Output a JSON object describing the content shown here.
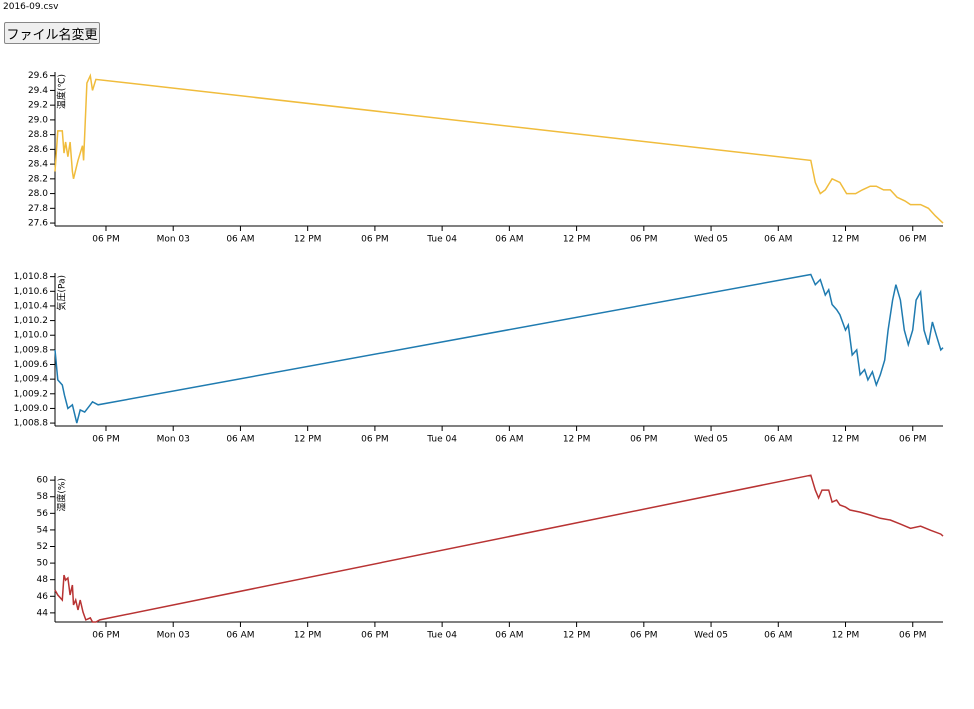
{
  "header": {
    "filename": "2016-09.csv",
    "button": "ファイル名変更"
  },
  "chart_data": [
    {
      "type": "line",
      "ylabel": "温度(℃)",
      "color": "#f0bc3c",
      "x": [
        13.45,
        13.7,
        14.1,
        14.25,
        14.4,
        14.6,
        14.8,
        15.0,
        15.1,
        15.5,
        15.9,
        16.0,
        16.3,
        16.6,
        16.8,
        17.1,
        80.9,
        81.3,
        81.75,
        82.2,
        82.8,
        83.5,
        84.1,
        84.9,
        85.5,
        86.2,
        86.75,
        87.4,
        88.0,
        88.6,
        89.3,
        89.8,
        90.7,
        91.4,
        92.0,
        92.7
      ],
      "values": [
        28.3,
        28.85,
        28.85,
        28.55,
        28.7,
        28.5,
        28.7,
        28.3,
        28.2,
        28.45,
        28.65,
        28.45,
        29.5,
        29.6,
        29.4,
        29.55,
        28.45,
        28.15,
        28.0,
        28.05,
        28.2,
        28.15,
        28.0,
        28.0,
        28.05,
        28.1,
        28.1,
        28.05,
        28.05,
        27.95,
        27.9,
        27.85,
        27.85,
        27.8,
        27.7,
        27.6
      ],
      "xlim": [
        13.45,
        92.7
      ],
      "xticks": [
        {
          "value": 18,
          "label": "06 PM"
        },
        {
          "value": 24,
          "label": "Mon 03"
        },
        {
          "value": 30,
          "label": "06 AM"
        },
        {
          "value": 36,
          "label": "12 PM"
        },
        {
          "value": 42,
          "label": "06 PM"
        },
        {
          "value": 48,
          "label": "Tue 04"
        },
        {
          "value": 54,
          "label": "06 AM"
        },
        {
          "value": 60,
          "label": "12 PM"
        },
        {
          "value": 66,
          "label": "06 PM"
        },
        {
          "value": 72,
          "label": "Wed 05"
        },
        {
          "value": 78,
          "label": "06 AM"
        },
        {
          "value": 84,
          "label": "12 PM"
        },
        {
          "value": 90,
          "label": "06 PM"
        }
      ],
      "ylim": [
        27.56,
        29.65
      ],
      "yticks": [
        27.6,
        27.8,
        {
          "value": 28,
          "label": "28.0"
        },
        28.2,
        28.4,
        28.6,
        28.8,
        {
          "value": 29,
          "label": "29.0"
        },
        29.2,
        29.4,
        29.6
      ]
    },
    {
      "type": "line",
      "ylabel": "気圧(Pa)",
      "color": "#1f7bb0",
      "x": [
        13.45,
        13.7,
        14.1,
        14.3,
        14.6,
        15.0,
        15.4,
        15.7,
        16.1,
        16.6,
        16.8,
        17.3,
        80.9,
        81.3,
        81.75,
        82.2,
        82.5,
        82.8,
        83.2,
        83.5,
        84.0,
        84.25,
        84.6,
        85.0,
        85.3,
        85.7,
        86.0,
        86.4,
        86.75,
        87.1,
        87.5,
        87.8,
        88.2,
        88.5,
        88.9,
        89.25,
        89.6,
        90.0,
        90.3,
        90.7,
        91.0,
        91.4,
        91.75,
        92.1,
        92.5,
        92.7
      ],
      "values": [
        1009.8,
        1009.39,
        1009.32,
        1009.18,
        1009.0,
        1009.05,
        1008.8,
        1008.98,
        1008.95,
        1009.05,
        1009.09,
        1009.05,
        1010.83,
        1010.69,
        1010.76,
        1010.55,
        1010.62,
        1010.42,
        1010.35,
        1010.28,
        1010.07,
        1010.14,
        1009.73,
        1009.8,
        1009.46,
        1009.53,
        1009.39,
        1009.5,
        1009.32,
        1009.46,
        1009.66,
        1010.07,
        1010.48,
        1010.69,
        1010.48,
        1010.07,
        1009.87,
        1010.07,
        1010.48,
        1010.59,
        1010.07,
        1009.87,
        1010.18,
        1010.0,
        1009.8,
        1009.83
      ],
      "xlim": [
        13.45,
        92.7
      ],
      "xticks": [
        {
          "value": 18,
          "label": "06 PM"
        },
        {
          "value": 24,
          "label": "Mon 03"
        },
        {
          "value": 30,
          "label": "06 AM"
        },
        {
          "value": 36,
          "label": "12 PM"
        },
        {
          "value": 42,
          "label": "06 PM"
        },
        {
          "value": 48,
          "label": "Tue 04"
        },
        {
          "value": 54,
          "label": "06 AM"
        },
        {
          "value": 60,
          "label": "12 PM"
        },
        {
          "value": 66,
          "label": "06 PM"
        },
        {
          "value": 72,
          "label": "Wed 05"
        },
        {
          "value": 78,
          "label": "06 AM"
        },
        {
          "value": 84,
          "label": "12 PM"
        },
        {
          "value": 90,
          "label": "06 PM"
        }
      ],
      "ylim": [
        1008.76,
        1010.85
      ],
      "yticks": [
        {
          "value": 1008.8,
          "label": "1,008.8"
        },
        {
          "value": 1009.0,
          "label": "1,009.0"
        },
        {
          "value": 1009.2,
          "label": "1,009.2"
        },
        {
          "value": 1009.4,
          "label": "1,009.4"
        },
        {
          "value": 1009.6,
          "label": "1,009.6"
        },
        {
          "value": 1009.8,
          "label": "1,009.8"
        },
        {
          "value": 1010.0,
          "label": "1,010.0"
        },
        {
          "value": 1010.2,
          "label": "1,010.2"
        },
        {
          "value": 1010.4,
          "label": "1,010.4"
        },
        {
          "value": 1010.6,
          "label": "1,010.6"
        },
        {
          "value": 1010.8,
          "label": "1,010.8"
        }
      ]
    },
    {
      "type": "line",
      "ylabel": "湿度(%)",
      "color": "#b83333",
      "x": [
        13.45,
        13.7,
        14.1,
        14.25,
        14.4,
        14.6,
        14.8,
        15.0,
        15.1,
        15.3,
        15.5,
        15.7,
        15.95,
        16.2,
        16.6,
        16.8,
        17.1,
        17.45,
        80.9,
        81.3,
        81.6,
        81.9,
        82.5,
        82.8,
        83.2,
        83.5,
        84.0,
        84.4,
        85.3,
        86.2,
        87.1,
        88.0,
        88.9,
        89.8,
        90.7,
        91.6,
        92.5,
        92.7
      ],
      "values": [
        46.75,
        46.15,
        45.55,
        48.55,
        47.95,
        48.2,
        46.15,
        47.35,
        44.95,
        45.55,
        44.35,
        45.55,
        44.1,
        43.15,
        43.4,
        42.9,
        42.9,
        43.15,
        60.6,
        58.8,
        57.85,
        58.8,
        58.8,
        57.35,
        57.6,
        57.0,
        56.75,
        56.4,
        56.15,
        55.8,
        55.4,
        55.2,
        54.7,
        54.2,
        54.45,
        53.95,
        53.5,
        53.25
      ],
      "xlim": [
        13.45,
        92.7
      ],
      "xticks": [
        {
          "value": 18,
          "label": "06 PM"
        },
        {
          "value": 24,
          "label": "Mon 03"
        },
        {
          "value": 30,
          "label": "06 AM"
        },
        {
          "value": 36,
          "label": "12 PM"
        },
        {
          "value": 42,
          "label": "06 PM"
        },
        {
          "value": 48,
          "label": "Tue 04"
        },
        {
          "value": 54,
          "label": "06 AM"
        },
        {
          "value": 60,
          "label": "12 PM"
        },
        {
          "value": 66,
          "label": "06 PM"
        },
        {
          "value": 72,
          "label": "Wed 05"
        },
        {
          "value": 78,
          "label": "06 AM"
        },
        {
          "value": 84,
          "label": "12 PM"
        },
        {
          "value": 90,
          "label": "06 PM"
        }
      ],
      "ylim": [
        42.9,
        60.5
      ],
      "yticks": [
        44,
        46,
        48,
        50,
        52,
        54,
        56,
        58,
        60
      ]
    }
  ]
}
